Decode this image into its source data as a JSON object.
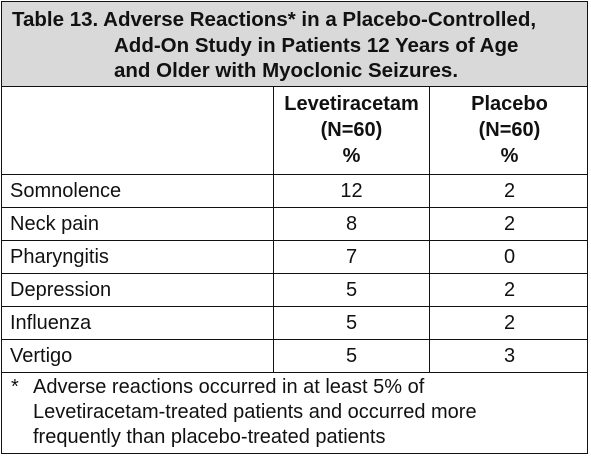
{
  "title": {
    "line1": "Table 13. Adverse Reactions* in a Placebo-Controlled,",
    "line2": "Add-On Study in Patients 12 Years of Age",
    "line3": "and Older with Myoclonic Seizures."
  },
  "columns": [
    {
      "name_line": "",
      "n_line": "",
      "unit_line": ""
    },
    {
      "name_line": "Levetiracetam",
      "n_line": "(N=60)",
      "unit_line": "%"
    },
    {
      "name_line": "Placebo",
      "n_line": "(N=60)",
      "unit_line": "%"
    }
  ],
  "rows": [
    {
      "label": "Somnolence",
      "levetiracetam": "12",
      "placebo": "2"
    },
    {
      "label": "Neck pain",
      "levetiracetam": "8",
      "placebo": "2"
    },
    {
      "label": "Pharyngitis",
      "levetiracetam": "7",
      "placebo": "0"
    },
    {
      "label": "Depression",
      "levetiracetam": "5",
      "placebo": "2"
    },
    {
      "label": "Influenza",
      "levetiracetam": "5",
      "placebo": "2"
    },
    {
      "label": "Vertigo",
      "levetiracetam": "5",
      "placebo": "3"
    }
  ],
  "footnote": {
    "marker": "*",
    "line1": "Adverse reactions occurred in at least 5% of",
    "line2": "Levetiracetam-treated patients and occurred more",
    "line3": "frequently than placebo-treated patients"
  }
}
